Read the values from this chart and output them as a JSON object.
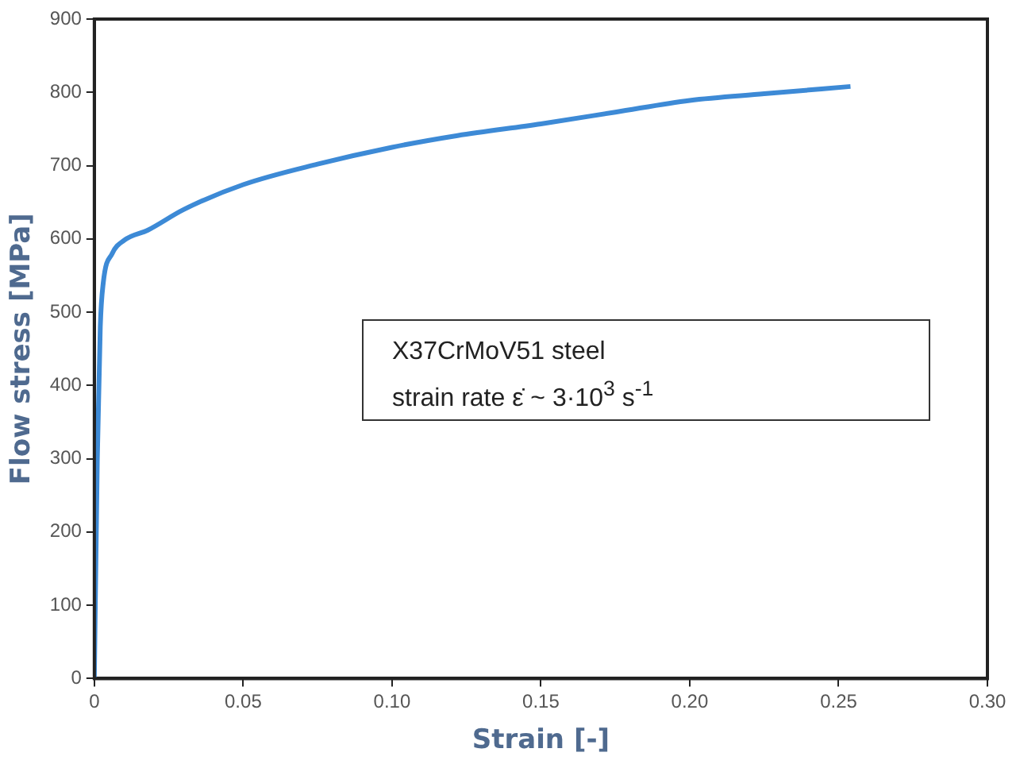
{
  "chart_data": {
    "type": "line",
    "xlabel": "Strain [-]",
    "ylabel": "Flow stress [MPa]",
    "annotations": [
      "X37CrMoV51 steel",
      "strain rate ε̇ ~ 3·10$^{3}$ s$^{-1}$"
    ],
    "x": [
      0,
      0.001,
      0.002,
      0.003,
      0.006,
      0.01,
      0.018,
      0.03,
      0.05,
      0.075,
      0.1,
      0.122,
      0.15,
      0.175,
      0.2,
      0.225,
      0.254
    ],
    "series": [
      {
        "color": "#3d8ad6",
        "values": [
          0,
          300,
          480,
          540,
          580,
          598,
          612,
          640,
          674,
          702,
          725,
          741,
          757,
          773,
          789,
          798,
          808
        ]
      }
    ],
    "xlim": [
      0,
      0.3
    ],
    "xticks": [
      0,
      0.05,
      {
        "value": 0.1,
        "label": "0.10"
      },
      0.15,
      {
        "value": 0.2,
        "label": "0.20"
      },
      0.25,
      {
        "value": 0.3,
        "label": "0.30"
      }
    ],
    "ylim": [
      0,
      900
    ],
    "yticks": [
      0,
      100,
      200,
      300,
      400,
      500,
      600,
      700,
      800,
      900
    ],
    "grid": false,
    "legend": false,
    "marker": "none",
    "line_style": "solid"
  }
}
